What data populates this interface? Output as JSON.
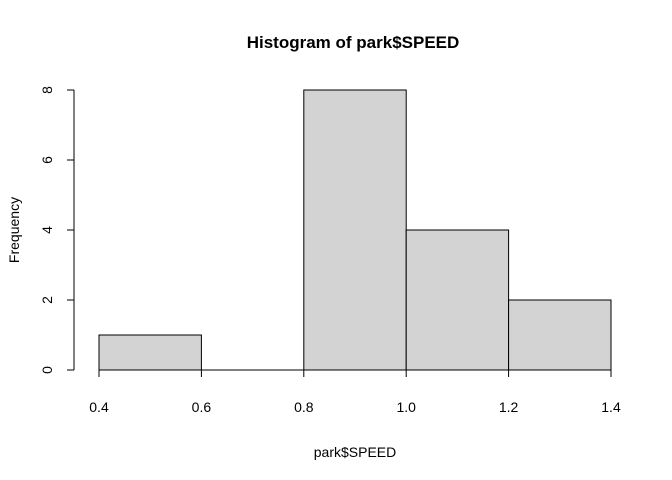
{
  "chart_data": {
    "type": "bar",
    "subtype": "histogram",
    "title": "Histogram of park$SPEED",
    "xlabel": "park$SPEED",
    "ylabel": "Frequency",
    "bins": [
      {
        "start": 0.4,
        "end": 0.6,
        "count": 1
      },
      {
        "start": 0.6,
        "end": 0.8,
        "count": 0
      },
      {
        "start": 0.8,
        "end": 1.0,
        "count": 8
      },
      {
        "start": 1.0,
        "end": 1.2,
        "count": 4
      },
      {
        "start": 1.2,
        "end": 1.4,
        "count": 2
      }
    ],
    "xlim": [
      0.4,
      1.4
    ],
    "ylim": [
      0,
      8
    ],
    "x_ticks": [
      0.4,
      0.6,
      0.8,
      1.0,
      1.2,
      1.4
    ],
    "x_tick_labels": [
      "0.4",
      "0.6",
      "0.8",
      "1.0",
      "1.2",
      "1.4"
    ],
    "y_ticks": [
      0,
      2,
      4,
      6,
      8
    ],
    "y_tick_labels": [
      "0",
      "2",
      "4",
      "6",
      "8"
    ],
    "bar_color": "#d3d3d3",
    "border_color": "#000000",
    "grid": false,
    "legend": "none"
  }
}
